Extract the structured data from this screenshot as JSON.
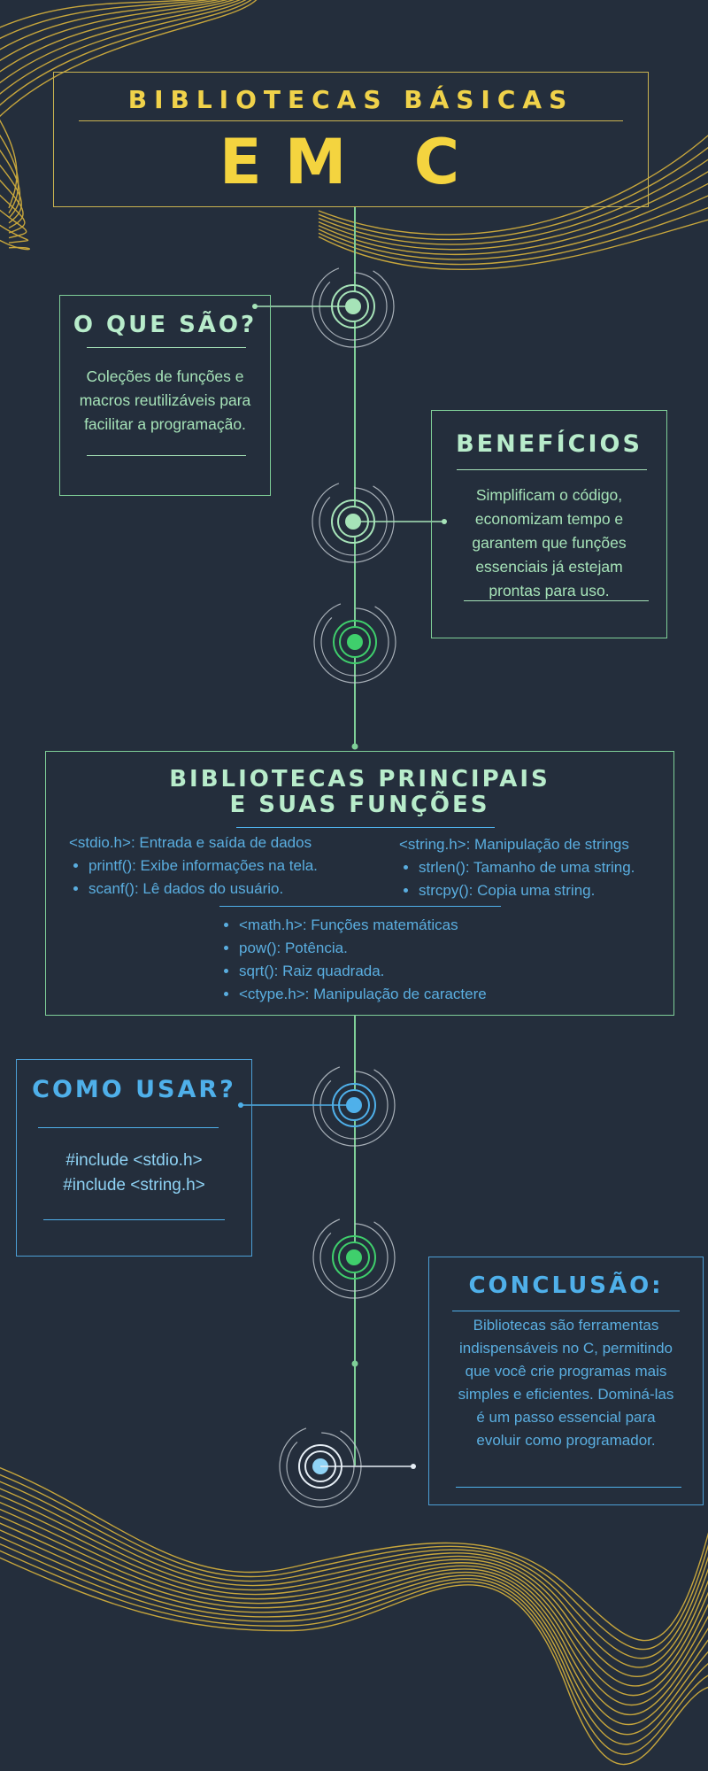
{
  "title": {
    "line1": "BIBLIOTECAS BÁSICAS",
    "line2": "EM C"
  },
  "cards": {
    "what": {
      "heading": "O QUE SÃO?",
      "text": "Coleções de funções e macros reutilizáveis para facilitar a programação."
    },
    "benefits": {
      "heading": "BENEFÍCIOS",
      "text": "Simplificam o código, economizam tempo e garantem que funções essenciais já estejam prontas para uso."
    },
    "libraries": {
      "heading_line1": "BIBLIOTECAS PRINCIPAIS",
      "heading_line2": "E SUAS FUNÇÕES",
      "stdio_title": "<stdio.h>: Entrada e saída de dados",
      "stdio_items": [
        "printf(): Exibe informações na tela.",
        "scanf(): Lê dados do usuário."
      ],
      "string_title": "<string.h>: Manipulação de strings",
      "string_items": [
        "strlen(): Tamanho de uma string.",
        "strcpy(): Copia uma string."
      ],
      "math_items": [
        "<math.h>: Funções matemáticas",
        "pow(): Potência.",
        "sqrt(): Raiz quadrada.",
        "<ctype.h>: Manipulação de caractere"
      ]
    },
    "usage": {
      "heading": "COMO USAR?",
      "line1": "#include <stdio.h>",
      "line2": "#include <string.h>"
    },
    "conclusion": {
      "heading": "CONCLUSÃO:",
      "text": "Bibliotecas são ferramentas indispensáveis no C, permitindo que você crie programas mais simples e eficientes. Dominá-las é um passo essencial para evoluir como programador."
    }
  },
  "colors": {
    "background": "#242e3c",
    "yellow": "#f4d43f",
    "mint": "#a6e3b8",
    "green": "#3fcf6c",
    "blue": "#4fb0ea",
    "light_blue": "#8fd3f5"
  }
}
